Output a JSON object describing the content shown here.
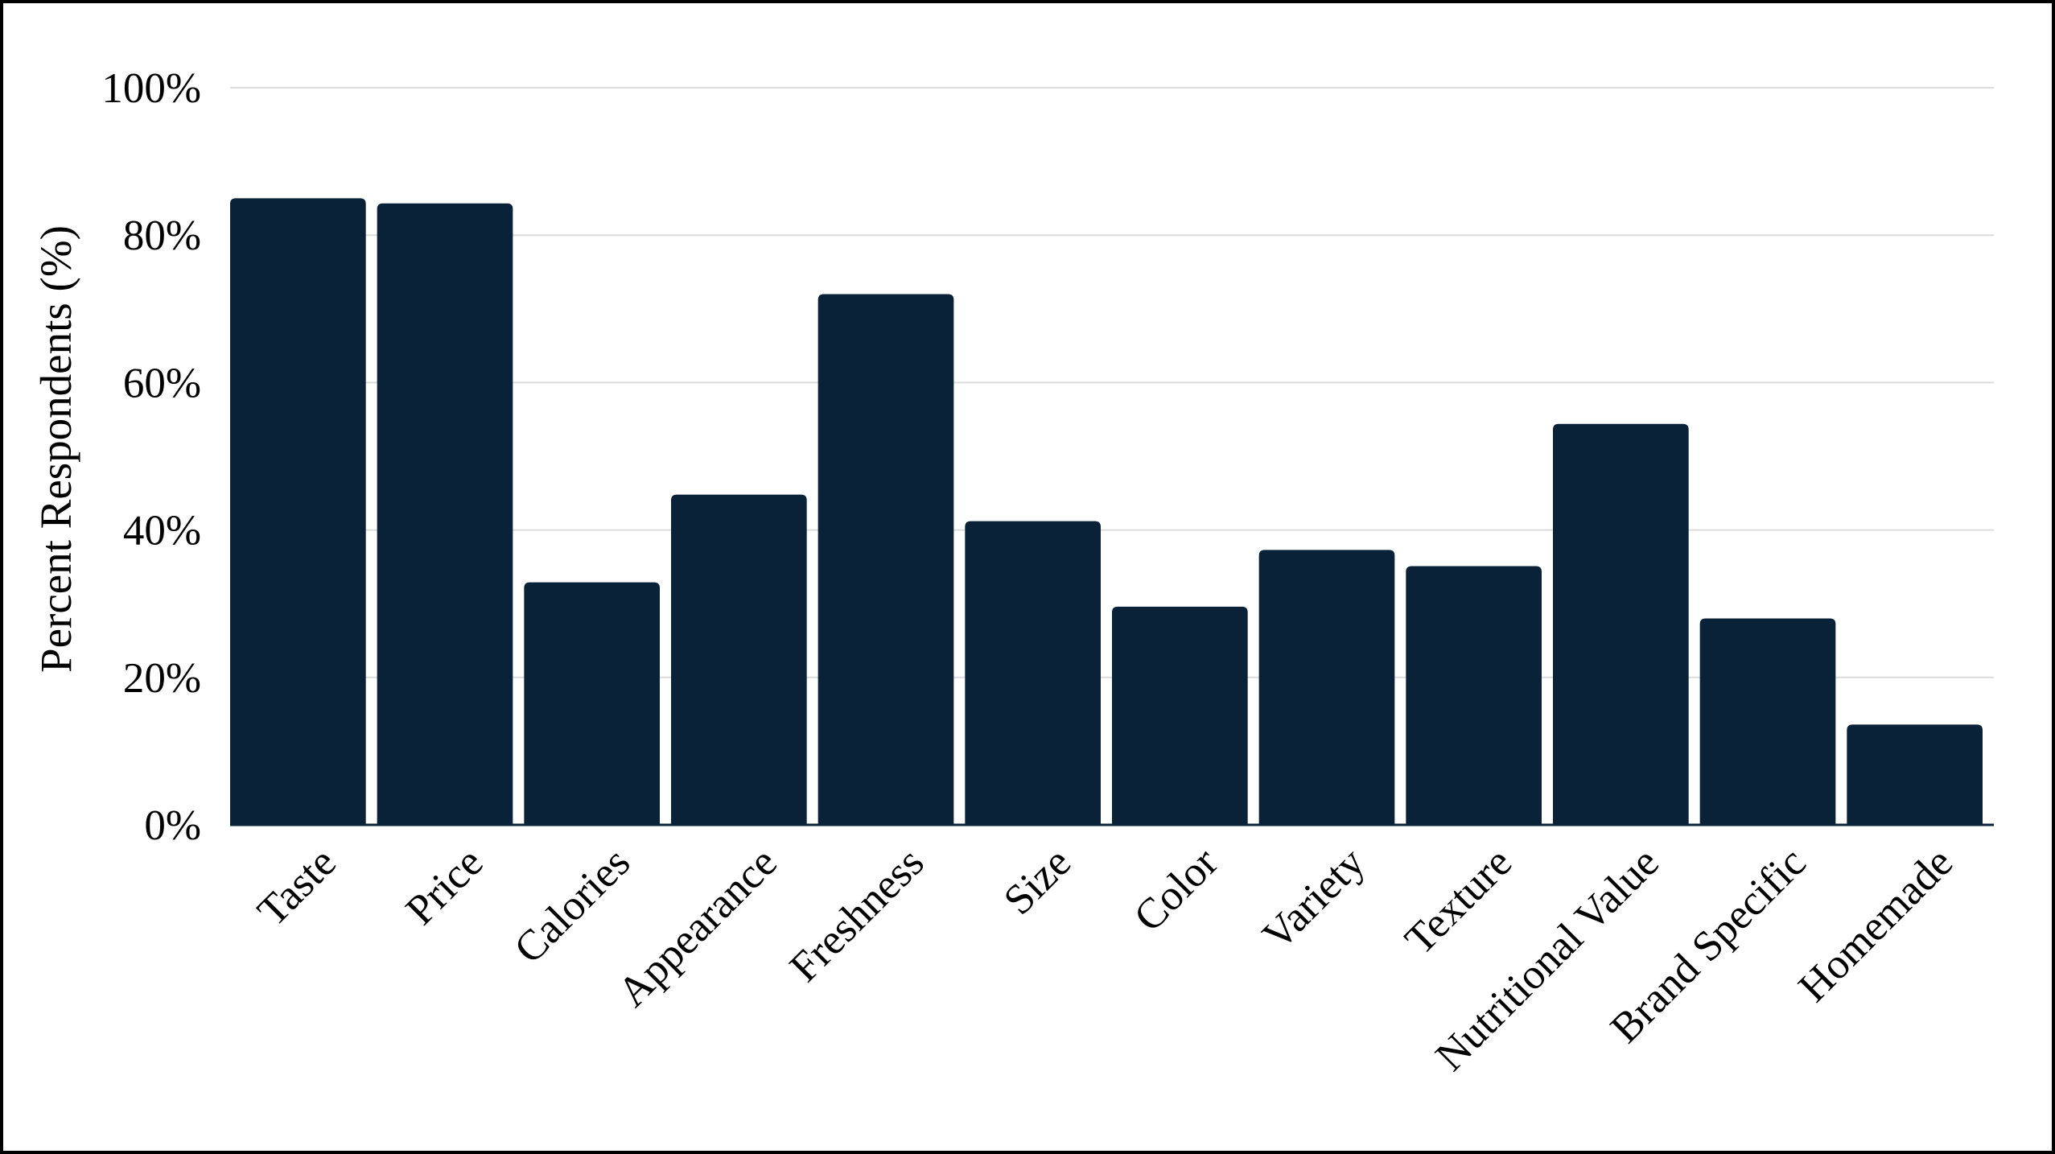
{
  "chart_data": {
    "type": "bar",
    "title": "",
    "xlabel": "",
    "ylabel": "Percent Respondents (%)",
    "ylim": [
      0,
      100
    ],
    "yticks": [
      0,
      20,
      40,
      60,
      80,
      100
    ],
    "ytick_labels": [
      "0%",
      "20%",
      "40%",
      "60%",
      "80%",
      "100%"
    ],
    "categories": [
      "Taste",
      "Price",
      "Calories",
      "Appearance",
      "Freshness",
      "Size",
      "Color",
      "Variety",
      "Texture",
      "Nutritional Value",
      "Brand Specific",
      "Homemade"
    ],
    "values": [
      85,
      84.3,
      32.9,
      44.8,
      72,
      41.2,
      29.6,
      37.3,
      35.1,
      54.4,
      28,
      13.6
    ],
    "bar_color": "#0a2238",
    "grid": true,
    "legend": "none"
  }
}
